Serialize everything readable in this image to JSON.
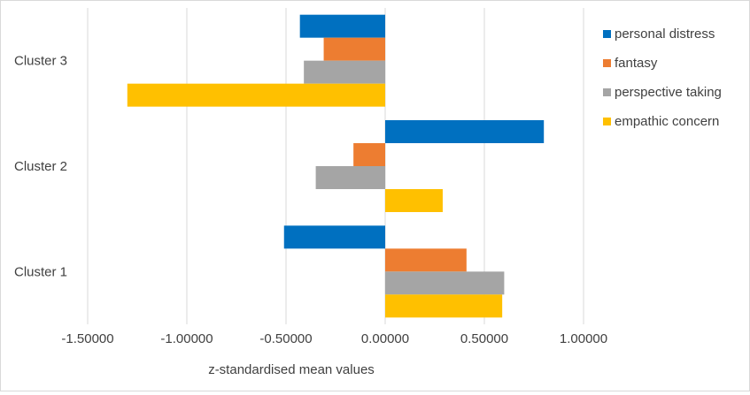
{
  "chart_data": {
    "type": "bar",
    "orientation": "horizontal",
    "categories": [
      "Cluster 1",
      "Cluster 2",
      "Cluster 3"
    ],
    "series": [
      {
        "name": "personal distress",
        "color": "#0070c0",
        "values": [
          -0.51,
          0.8,
          -0.43
        ]
      },
      {
        "name": "fantasy",
        "color": "#ed7d31",
        "values": [
          0.41,
          -0.16,
          -0.31
        ]
      },
      {
        "name": "perspective taking",
        "color": "#a5a5a5",
        "values": [
          0.6,
          -0.35,
          -0.41
        ]
      },
      {
        "name": "empathic concern",
        "color": "#ffc000",
        "values": [
          0.59,
          0.29,
          -1.3
        ]
      }
    ],
    "xlim": [
      -1.5,
      1.0
    ],
    "xticks": [
      -1.5,
      -1.0,
      -0.5,
      0.0,
      0.5,
      1.0
    ],
    "xtick_labels": [
      "-1.50000",
      "-1.00000",
      "-0.50000",
      "0.00000",
      "0.50000",
      "1.00000"
    ],
    "xlabel": "z-standardised  mean values",
    "ylabel": "",
    "title": "",
    "grid": "vertical",
    "legend_position": "right"
  }
}
